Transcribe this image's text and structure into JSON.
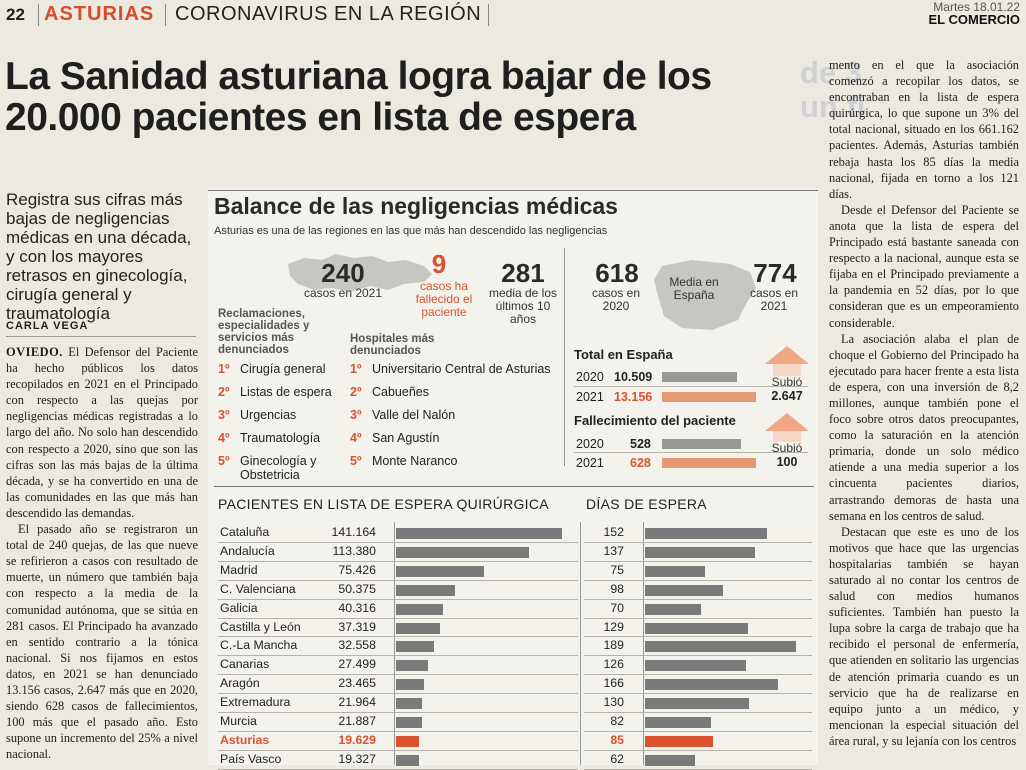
{
  "header": {
    "page_number": "22",
    "section": "ASTURIAS",
    "subsection": "CORONAVIRUS EN LA REGIÓN",
    "date": "Martes 18.01.22",
    "newspaper": "EL COMERCIO"
  },
  "headline": "La Sanidad asturiana logra bajar de los 20.000 pacientes en lista de espera",
  "ghost_text": [
    "de 3",
    "un fi"
  ],
  "lead": "Registra sus cifras más bajas de negligencias médicas en una década, y con los mayores retrasos en ginecología, cirugía general y traumatología",
  "author": "CARLA VEGA",
  "left_body": {
    "city": "OVIEDO.",
    "p1": " El Defensor del Paciente ha hecho públicos los datos recopilados en 2021 en el Principado con respecto a las quejas por negligencias médicas registradas a lo largo del año. No solo han descendido con respecto a 2020, sino que son las cifras son las más bajas de la última década, y se ha convertido en una de las comunidades en las que más han descendido las demandas.",
    "p2": "El pasado año se registraron un total de 240 quejas, de las que nueve se refirieron a casos con resultado de muerte, un número que también baja con respecto a la media de la comunidad autónoma, que se sitúa en 281 casos. El Principado ha avanzado en sentido contrario a la tónica nacional. Si nos fijamos en estos datos, en 2021 se han denunciado 13.156 casos, 2.647 más que en 2020, siendo 628 casos de fallecimientos, 100 más que el pasado año. Esto supone un incremento del 25% a nivel nacional."
  },
  "right_body": {
    "p1": "mento en el que la asociación comenzó a recopilar los datos, se encontraban en la lista de espera quirúrgica, lo que supone un 3% del total nacional, situado en los 661.162 pacientes. Además, Asturias también rebaja hasta los 85 días la media nacional, fijada en torno a los 121 días.",
    "p2": "Desde el Defensor del Paciente se anota que la lista de espera del Principado está bastante saneada con respecto a la nacional, aunque esta se fijaba en el Principado previamente a la pandemia en 52 días, por lo que consideran que es un empeoramiento considerable.",
    "p3": "La asociación alaba el plan de choque el Gobierno del Principado ha ejecutado para hacer frente a esta lista de espera, con una inversión de 8,2 millones, aunque también pone el foco sobre otros datos preocupantes, como la saturación en la atención primaria, donde un solo médico atiende a una media superior a los cincuenta pacientes diarios, arrastrando demoras de hasta una semana en los centros de salud.",
    "p4": "Destacan que este es uno de los motivos que hace que las urgencias hospitalarias también se hayan saturado al no contar los centros de salud con medios humanos suficientes. También han puesto la lupa sobre la carga de trabajo que ha recibido el personal de enfermería, que atienden en solitario las urgencias de atención primaria cuando es un servicio que ha de realizarse en equipo junto a un médico, y mencionan la especial situación del área rural, y su lejanía con los centros"
  },
  "graphic": {
    "title": "Balance de las negligencias médicas",
    "subtitle": "Asturias es una de las regiones en las que más han descendido las negligencias",
    "asturias_stats": {
      "cases": "240",
      "cases_label": "casos en 2021",
      "deaths": "9",
      "deaths_label": "casos ha fallecido el paciente",
      "avg": "281",
      "avg_label": "media de los últimos 10 años"
    },
    "spain_stats": {
      "v2020": "618",
      "label2020": "casos en 2020",
      "middle_label": "Media en España",
      "v2021": "774",
      "label2021": "casos en 2021"
    },
    "list1": {
      "title": "Reclamaciones, especialidades y servicios más denunciados",
      "items": [
        "Cirugía general",
        "Listas de espera",
        "Urgencias",
        "Traumatología",
        "Ginecología y Obstetricia"
      ]
    },
    "list2": {
      "title": "Hospitales más denunciados",
      "items": [
        "Universitario Central de Asturias",
        "Cabueñes",
        "Valle del Nalón",
        "San Agustín",
        "Monte Naranco"
      ]
    },
    "ranks": [
      "1º",
      "2º",
      "3º",
      "4º",
      "5º"
    ],
    "total_spain": {
      "title": "Total en España",
      "rows": [
        {
          "year": "2020",
          "value": "10.509",
          "n": 10509
        },
        {
          "year": "2021",
          "value": "13.156",
          "n": 13156
        }
      ],
      "change_label": "Subió",
      "change_value": "2.647"
    },
    "deaths_spain": {
      "title": "Fallecimiento del paciente",
      "rows": [
        {
          "year": "2020",
          "value": "528",
          "n": 528
        },
        {
          "year": "2021",
          "value": "628",
          "n": 628
        }
      ],
      "change_label": "Subió",
      "change_value": "100"
    },
    "table_title_left": "PACIENTES EN LISTA DE ESPERA QUIRÚRGICA",
    "table_title_right": "DÍAS DE ESPERA"
  },
  "chart_data": {
    "type": "bar",
    "categories": [
      "Cataluña",
      "Andalucía",
      "Madrid",
      "C. Valenciana",
      "Galicia",
      "Castilla y León",
      "C.-La Mancha",
      "Canarias",
      "Aragón",
      "Extremadura",
      "Murcia",
      "Asturias",
      "País Vasco"
    ],
    "series": [
      {
        "name": "PACIENTES EN LISTA DE ESPERA QUIRÚRGICA",
        "values": [
          141164,
          113380,
          75426,
          50375,
          40316,
          37319,
          32558,
          27499,
          23465,
          21964,
          21887,
          19629,
          19327
        ],
        "labels": [
          "141.164",
          "113.380",
          "75.426",
          "50.375",
          "40.316",
          "37.319",
          "32.558",
          "27.499",
          "23.465",
          "21.964",
          "21.887",
          "19.629",
          "19.327"
        ]
      },
      {
        "name": "DÍAS DE ESPERA",
        "values": [
          152,
          137,
          75,
          98,
          70,
          129,
          189,
          126,
          166,
          130,
          82,
          85,
          62
        ]
      }
    ],
    "highlight": "Asturias",
    "colors": {
      "bar": "#7a7a7a",
      "highlight": "#d9532f"
    }
  }
}
